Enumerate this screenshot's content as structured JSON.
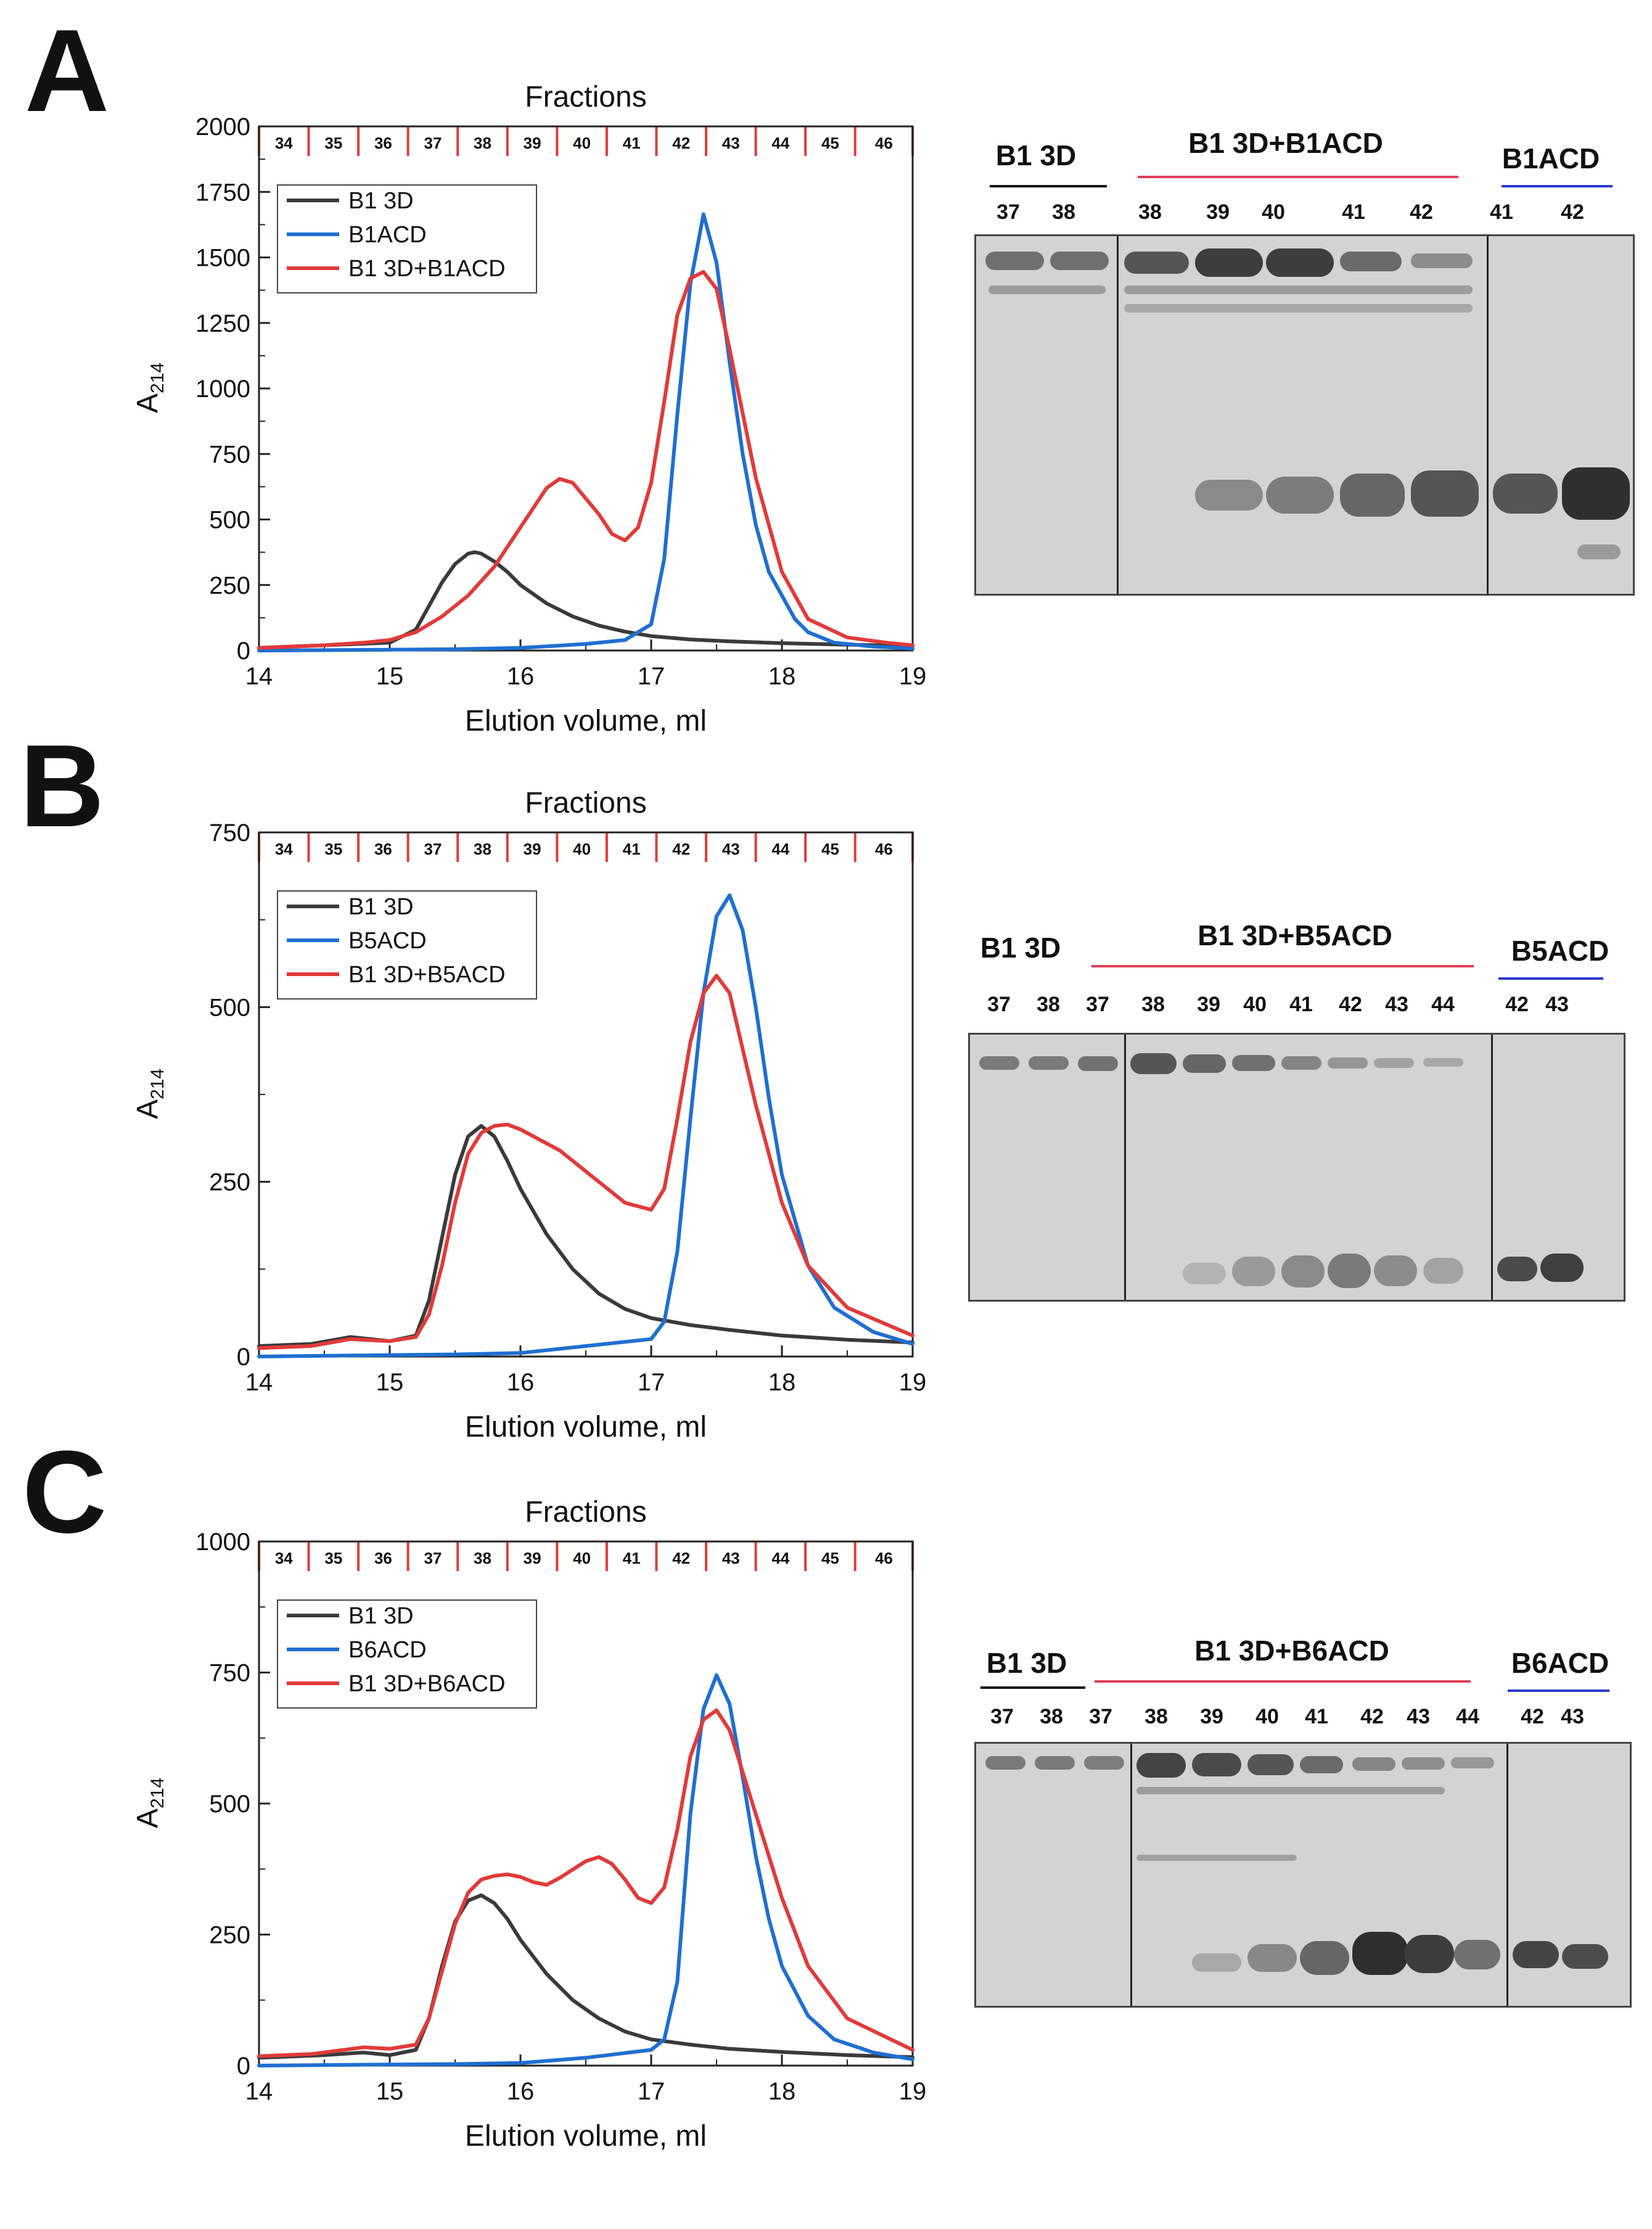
{
  "panels": [
    {
      "letter": "A",
      "chart_data": {
        "type": "line",
        "title": "Fractions",
        "xlabel": "Elution volume, ml",
        "ylabel_main": "A",
        "ylabel_sub": "214",
        "xlim": [
          14,
          19
        ],
        "ylim": [
          0,
          2000
        ],
        "xticks": [
          14,
          15,
          16,
          17,
          18,
          19
        ],
        "yticks": [
          0,
          250,
          500,
          750,
          1000,
          1250,
          1500,
          1750,
          2000
        ],
        "fractions": [
          "34",
          "35",
          "36",
          "37",
          "38",
          "39",
          "40",
          "41",
          "42",
          "43",
          "44",
          "45",
          "46"
        ],
        "fraction_bounds": [
          14.0,
          14.38,
          14.76,
          15.14,
          15.52,
          15.9,
          16.28,
          16.66,
          17.04,
          17.42,
          17.8,
          18.18,
          18.56,
          19.0
        ],
        "series": [
          {
            "name": "B1 3D",
            "color": "#3a3a3a",
            "x": [
              14.0,
              14.5,
              15.0,
              15.2,
              15.3,
              15.4,
              15.5,
              15.6,
              15.65,
              15.7,
              15.8,
              15.9,
              16.0,
              16.2,
              16.4,
              16.6,
              16.8,
              17.0,
              17.3,
              17.6,
              18.0,
              18.5,
              19.0
            ],
            "y": [
              10,
              20,
              30,
              80,
              170,
              260,
              330,
              370,
              375,
              370,
              340,
              300,
              250,
              180,
              130,
              95,
              72,
              55,
              42,
              35,
              28,
              22,
              18
            ]
          },
          {
            "name": "B1ACD",
            "color": "#1f6fd1",
            "x": [
              14.0,
              15.0,
              15.5,
              16.0,
              16.5,
              16.8,
              17.0,
              17.1,
              17.2,
              17.3,
              17.4,
              17.5,
              17.6,
              17.7,
              17.8,
              17.9,
              18.0,
              18.1,
              18.2,
              18.4,
              18.7,
              19.0
            ],
            "y": [
              0,
              3,
              5,
              10,
              25,
              40,
              100,
              350,
              900,
              1400,
              1665,
              1480,
              1100,
              750,
              480,
              300,
              210,
              120,
              70,
              30,
              15,
              8
            ]
          },
          {
            "name": "B1 3D+B1ACD",
            "color": "#e23a3a",
            "x": [
              14.0,
              14.5,
              14.8,
              15.0,
              15.2,
              15.4,
              15.6,
              15.8,
              16.0,
              16.2,
              16.3,
              16.4,
              16.6,
              16.7,
              16.8,
              16.9,
              17.0,
              17.1,
              17.2,
              17.3,
              17.4,
              17.5,
              17.6,
              17.8,
              18.0,
              18.2,
              18.5,
              18.8,
              19.0
            ],
            "y": [
              10,
              20,
              30,
              40,
              70,
              130,
              210,
              320,
              470,
              620,
              655,
              640,
              520,
              445,
              420,
              470,
              640,
              950,
              1280,
              1420,
              1445,
              1380,
              1150,
              660,
              300,
              120,
              50,
              30,
              20
            ]
          }
        ]
      },
      "gel": {
        "groups": [
          {
            "title": "B1 3D",
            "line_color": "#111111"
          },
          {
            "title": "B1 3D+B1ACD",
            "line_color": "#e0405a"
          },
          {
            "title": "B1ACD",
            "line_color": "#2b3ad0"
          }
        ],
        "lanes": [
          "37",
          "38",
          "38",
          "39",
          "40",
          "41",
          "42",
          "41",
          "42"
        ]
      }
    },
    {
      "letter": "B",
      "chart_data": {
        "type": "line",
        "title": "Fractions",
        "xlabel": "Elution volume, ml",
        "ylabel_main": "A",
        "ylabel_sub": "214",
        "xlim": [
          14,
          19
        ],
        "ylim": [
          0,
          750
        ],
        "xticks": [
          14,
          15,
          16,
          17,
          18,
          19
        ],
        "yticks": [
          0,
          250,
          500,
          750
        ],
        "fractions": [
          "34",
          "35",
          "36",
          "37",
          "38",
          "39",
          "40",
          "41",
          "42",
          "43",
          "44",
          "45",
          "46"
        ],
        "fraction_bounds": [
          14.0,
          14.38,
          14.76,
          15.14,
          15.52,
          15.9,
          16.28,
          16.66,
          17.04,
          17.42,
          17.8,
          18.18,
          18.56,
          19.0
        ],
        "series": [
          {
            "name": "B1 3D",
            "color": "#3a3a3a",
            "x": [
              14.0,
              14.4,
              14.7,
              15.0,
              15.2,
              15.3,
              15.4,
              15.5,
              15.6,
              15.7,
              15.8,
              15.9,
              16.0,
              16.2,
              16.4,
              16.6,
              16.8,
              17.0,
              17.3,
              17.6,
              18.0,
              18.5,
              19.0
            ],
            "y": [
              15,
              18,
              28,
              22,
              30,
              80,
              170,
              260,
              315,
              330,
              315,
              280,
              240,
              175,
              125,
              90,
              68,
              55,
              45,
              38,
              30,
              24,
              20
            ]
          },
          {
            "name": "B5ACD",
            "color": "#1f6fd1",
            "x": [
              14.0,
              15.0,
              15.5,
              16.0,
              16.5,
              17.0,
              17.1,
              17.2,
              17.3,
              17.4,
              17.5,
              17.6,
              17.7,
              17.8,
              17.9,
              18.0,
              18.2,
              18.4,
              18.7,
              19.0
            ],
            "y": [
              0,
              2,
              3,
              5,
              15,
              25,
              50,
              150,
              340,
              520,
              630,
              660,
              610,
              500,
              370,
              260,
              130,
              70,
              35,
              18
            ]
          },
          {
            "name": "B1 3D+B5ACD",
            "color": "#e23a3a",
            "x": [
              14.0,
              14.4,
              14.7,
              15.0,
              15.2,
              15.3,
              15.4,
              15.5,
              15.6,
              15.7,
              15.8,
              15.9,
              16.0,
              16.3,
              16.6,
              16.8,
              17.0,
              17.1,
              17.2,
              17.3,
              17.4,
              17.5,
              17.6,
              17.7,
              17.8,
              18.0,
              18.2,
              18.5,
              19.0
            ],
            "y": [
              12,
              15,
              25,
              22,
              28,
              60,
              130,
              220,
              290,
              320,
              330,
              332,
              325,
              295,
              250,
              220,
              210,
              240,
              340,
              450,
              520,
              545,
              520,
              440,
              360,
              220,
              130,
              70,
              30
            ]
          }
        ]
      },
      "gel": {
        "groups": [
          {
            "title": "B1 3D",
            "line_color": "#111111"
          },
          {
            "title": "B1 3D+B5ACD",
            "line_color": "#e0405a"
          },
          {
            "title": "B5ACD",
            "line_color": "#2b3ad0"
          }
        ],
        "lanes": [
          "37",
          "38",
          "37",
          "38",
          "39",
          "40",
          "41",
          "42",
          "43",
          "44",
          "42",
          "43"
        ]
      }
    },
    {
      "letter": "C",
      "chart_data": {
        "type": "line",
        "title": "Fractions",
        "xlabel": "Elution volume, ml",
        "ylabel_main": "A",
        "ylabel_sub": "214",
        "xlim": [
          14,
          19
        ],
        "ylim": [
          0,
          1000
        ],
        "xticks": [
          14,
          15,
          16,
          17,
          18,
          19
        ],
        "yticks": [
          0,
          250,
          500,
          750,
          1000
        ],
        "fractions": [
          "34",
          "35",
          "36",
          "37",
          "38",
          "39",
          "40",
          "41",
          "42",
          "43",
          "44",
          "45",
          "46"
        ],
        "fraction_bounds": [
          14.0,
          14.38,
          14.76,
          15.14,
          15.52,
          15.9,
          16.28,
          16.66,
          17.04,
          17.42,
          17.8,
          18.18,
          18.56,
          19.0
        ],
        "series": [
          {
            "name": "B1 3D",
            "color": "#3a3a3a",
            "x": [
              14.0,
              14.5,
              14.8,
              15.0,
              15.2,
              15.3,
              15.4,
              15.5,
              15.6,
              15.7,
              15.8,
              15.9,
              16.0,
              16.2,
              16.4,
              16.6,
              16.8,
              17.0,
              17.3,
              17.6,
              18.0,
              18.5,
              19.0
            ],
            "y": [
              15,
              20,
              25,
              20,
              30,
              90,
              190,
              275,
              315,
              325,
              310,
              280,
              240,
              175,
              125,
              90,
              65,
              50,
              40,
              32,
              26,
              20,
              16
            ]
          },
          {
            "name": "B6ACD",
            "color": "#1f6fd1",
            "x": [
              14.0,
              15.0,
              15.5,
              16.0,
              16.5,
              17.0,
              17.1,
              17.2,
              17.3,
              17.4,
              17.5,
              17.6,
              17.7,
              17.8,
              17.9,
              18.0,
              18.2,
              18.4,
              18.7,
              19.0
            ],
            "y": [
              0,
              2,
              3,
              5,
              15,
              30,
              50,
              160,
              480,
              680,
              745,
              690,
              550,
              400,
              280,
              190,
              95,
              50,
              25,
              12
            ]
          },
          {
            "name": "B1 3D+B6ACD",
            "color": "#e23a3a",
            "x": [
              14.0,
              14.4,
              14.8,
              15.0,
              15.2,
              15.3,
              15.4,
              15.5,
              15.6,
              15.7,
              15.8,
              15.9,
              16.0,
              16.1,
              16.2,
              16.3,
              16.5,
              16.6,
              16.7,
              16.8,
              16.9,
              17.0,
              17.1,
              17.2,
              17.3,
              17.4,
              17.5,
              17.6,
              17.8,
              18.0,
              18.2,
              18.5,
              19.0
            ],
            "y": [
              18,
              22,
              35,
              32,
              40,
              90,
              180,
              270,
              330,
              355,
              362,
              365,
              360,
              350,
              345,
              358,
              390,
              398,
              385,
              355,
              320,
              310,
              340,
              450,
              590,
              660,
              678,
              640,
              480,
              320,
              190,
              90,
              30
            ]
          }
        ]
      },
      "gel": {
        "groups": [
          {
            "title": "B1 3D",
            "line_color": "#111111"
          },
          {
            "title": "B1 3D+B6ACD",
            "line_color": "#e0405a"
          },
          {
            "title": "B6ACD",
            "line_color": "#2b3ad0"
          }
        ],
        "lanes": [
          "37",
          "38",
          "37",
          "38",
          "39",
          "40",
          "41",
          "42",
          "43",
          "44",
          "42",
          "43"
        ]
      }
    }
  ]
}
